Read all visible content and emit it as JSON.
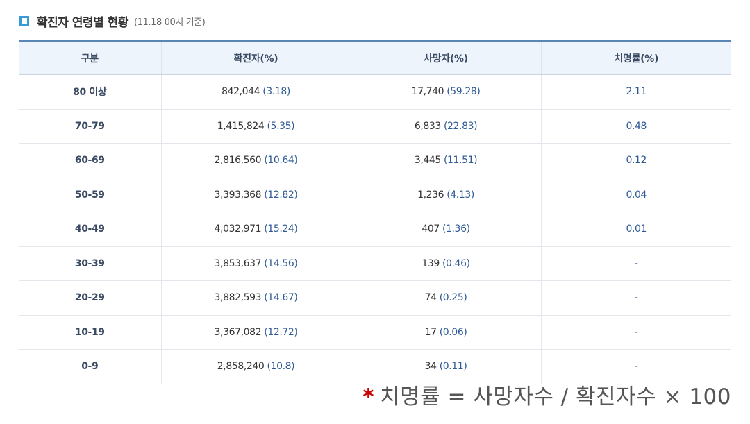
{
  "section": {
    "title": "확진자 연령별 현황",
    "subtitle": "(11.18 00시 기준)",
    "icon": "square-bullet-icon",
    "accent_color": "#3a9ad9"
  },
  "table": {
    "headers": [
      "구분",
      "확진자(%)",
      "사망자(%)",
      "치명률(%)"
    ],
    "rows": [
      {
        "age": "80 이상",
        "cases": "842,044",
        "cases_pct": "(3.18)",
        "deaths": "17,740",
        "deaths_pct": "(59.28)",
        "cfr": "2.11"
      },
      {
        "age": "70-79",
        "cases": "1,415,824",
        "cases_pct": "(5.35)",
        "deaths": "6,833",
        "deaths_pct": "(22.83)",
        "cfr": "0.48"
      },
      {
        "age": "60-69",
        "cases": "2,816,560",
        "cases_pct": "(10.64)",
        "deaths": "3,445",
        "deaths_pct": "(11.51)",
        "cfr": "0.12"
      },
      {
        "age": "50-59",
        "cases": "3,393,368",
        "cases_pct": "(12.82)",
        "deaths": "1,236",
        "deaths_pct": "(4.13)",
        "cfr": "0.04"
      },
      {
        "age": "40-49",
        "cases": "4,032,971",
        "cases_pct": "(15.24)",
        "deaths": "407",
        "deaths_pct": "(1.36)",
        "cfr": "0.01"
      },
      {
        "age": "30-39",
        "cases": "3,853,637",
        "cases_pct": "(14.56)",
        "deaths": "139",
        "deaths_pct": "(0.46)",
        "cfr": "-"
      },
      {
        "age": "20-29",
        "cases": "3,882,593",
        "cases_pct": "(14.67)",
        "deaths": "74",
        "deaths_pct": "(0.25)",
        "cfr": "-"
      },
      {
        "age": "10-19",
        "cases": "3,367,082",
        "cases_pct": "(12.72)",
        "deaths": "17",
        "deaths_pct": "(0.06)",
        "cfr": "-"
      },
      {
        "age": "0-9",
        "cases": "2,858,240",
        "cases_pct": "(10.8)",
        "deaths": "34",
        "deaths_pct": "(0.11)",
        "cfr": "-"
      }
    ]
  },
  "footnote": {
    "star": "*",
    "text": "치명률 = 사망자수 / 확진자수 × 100",
    "star_color": "#cc0000"
  }
}
